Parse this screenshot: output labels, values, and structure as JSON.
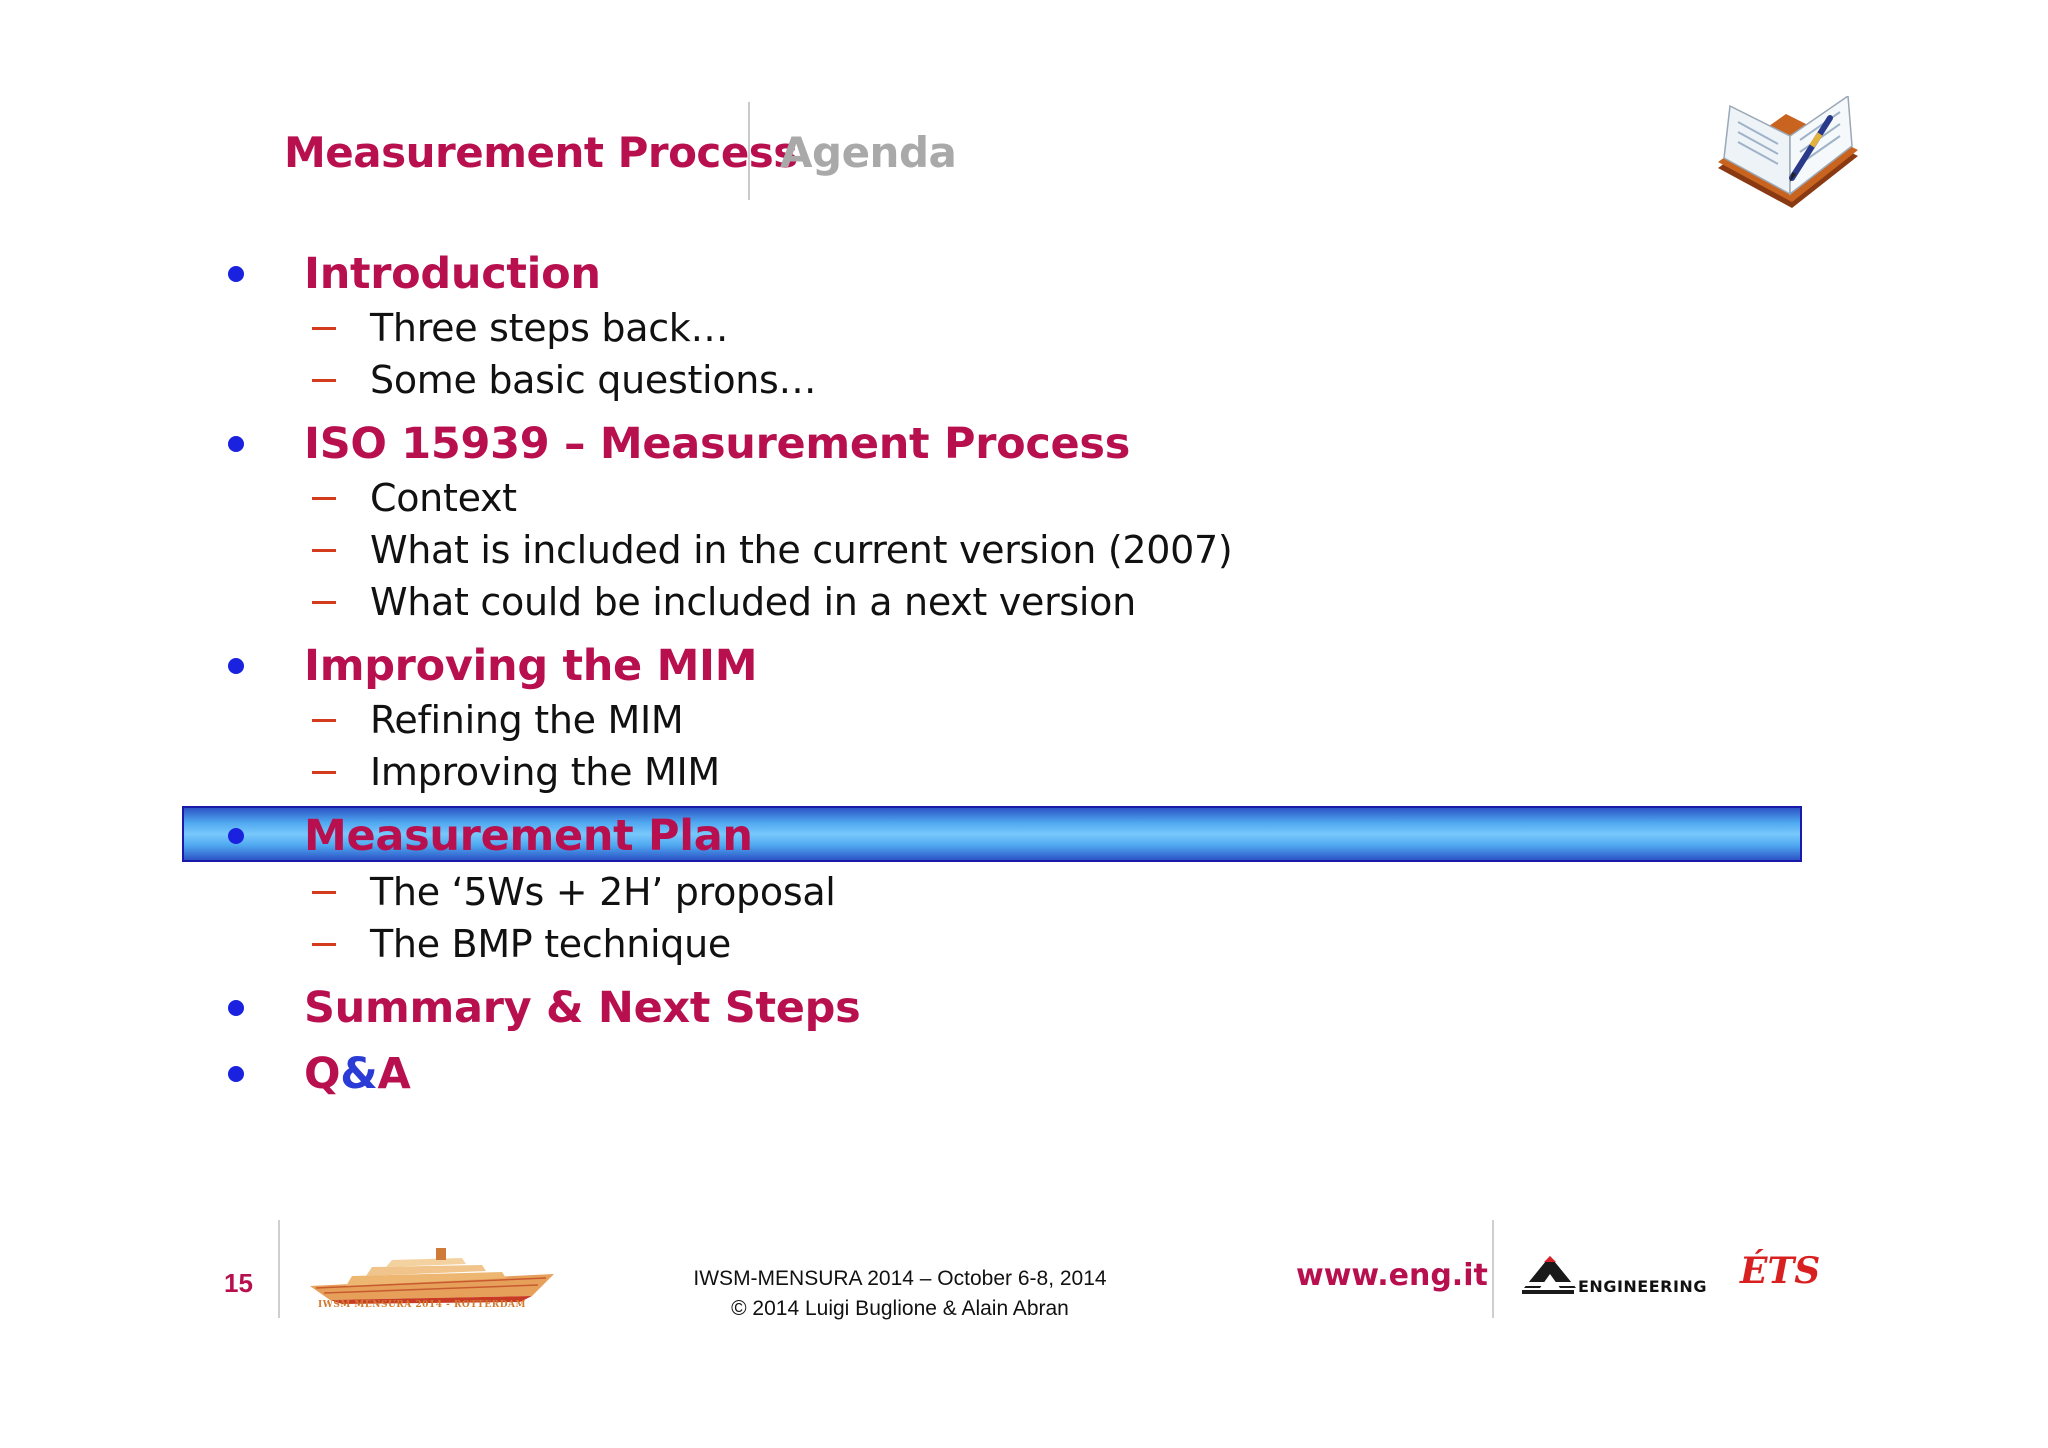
{
  "header": {
    "title": "Measurement Process",
    "section": "Agenda"
  },
  "agenda": {
    "items": [
      {
        "label": "Introduction",
        "subitems": [
          "Three steps back…",
          "Some basic questions…"
        ]
      },
      {
        "label": "ISO 15939 – Measurement Process",
        "subitems": [
          "Context",
          "What is included in the current version (2007)",
          "What could be included in a next version"
        ]
      },
      {
        "label": "Improving the MIM",
        "subitems": [
          "Refining the MIM",
          "Improving the MIM"
        ]
      },
      {
        "label": "Measurement Plan",
        "subitems": [
          "The ‘5Ws + 2H’ proposal",
          "The BMP technique"
        ],
        "highlighted": true
      },
      {
        "label": "Summary & Next Steps",
        "subitems": []
      },
      {
        "label_q": "Q",
        "label_amp": "&",
        "label_a": "A",
        "subitems": []
      }
    ]
  },
  "footer": {
    "page_number": "15",
    "ship_caption": "IWSM MENSURA 2014 - ROTTERDAM",
    "conference": "IWSM-MENSURA 2014 – October 6-8, 2014",
    "copyright": "© 2014 Luigi Buglione & Alain Abran",
    "url": "www.eng.it",
    "engineering_logo_text": "ENGINEERING",
    "ets_logo_text": "ÉTS"
  },
  "colors": {
    "title": "#b8104f",
    "agenda_gray": "#a9a9a9",
    "bullet_dot": "#1a22e0",
    "dash": "#d43a1c",
    "highlight": "#78c8fb"
  },
  "icons": [
    "book-icon",
    "ship-logo",
    "engineering-logo",
    "ets-logo"
  ]
}
